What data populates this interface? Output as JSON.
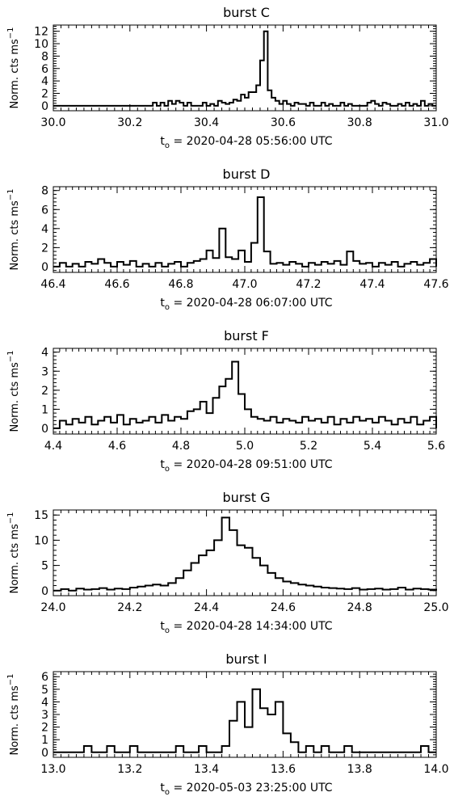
{
  "chart_data": [
    {
      "type": "line",
      "title": "burst C",
      "ylabel": "Norm. cts ms",
      "ylabel_exponent": "−1",
      "xlabel_prefix": "t",
      "xlabel_subscript": "o",
      "xlabel": " = 2020-04-28 05:56:00 UTC",
      "xlim": [
        30.0,
        31.0
      ],
      "ylim": [
        -0.8,
        13
      ],
      "xticks": [
        "30.0",
        "30.2",
        "30.4",
        "30.6",
        "30.8",
        "31.0"
      ],
      "yticks": [
        "0",
        "2",
        "4",
        "6",
        "8",
        "10",
        "12"
      ],
      "x": [
        30.0,
        30.26,
        30.27,
        30.28,
        30.29,
        30.3,
        30.31,
        30.32,
        30.33,
        30.34,
        30.35,
        30.36,
        30.37,
        30.38,
        30.39,
        30.4,
        30.41,
        30.42,
        30.43,
        30.44,
        30.45,
        30.46,
        30.47,
        30.48,
        30.49,
        30.5,
        30.51,
        30.52,
        30.53,
        30.54,
        30.55,
        30.56,
        30.57,
        30.58,
        30.59,
        30.6,
        30.61,
        30.62,
        30.63,
        30.64,
        30.65,
        30.66,
        30.67,
        30.68,
        30.69,
        30.7,
        30.71,
        30.72,
        30.73,
        30.74,
        30.75,
        30.76,
        30.77,
        30.78,
        30.79,
        30.8,
        30.81,
        30.82,
        30.83,
        30.84,
        30.85,
        30.86,
        30.87,
        30.88,
        30.89,
        30.9,
        30.91,
        30.92,
        30.93,
        30.94,
        30.95,
        30.96,
        30.97,
        30.98,
        30.99,
        31.0
      ],
      "y": [
        0,
        0.5,
        0,
        0.5,
        0,
        0.8,
        0.3,
        0.8,
        0.5,
        0,
        0.5,
        0,
        0,
        0,
        0.5,
        0,
        0.3,
        0,
        0.8,
        0.5,
        0.3,
        0.5,
        1.0,
        0.8,
        1.8,
        1.3,
        2.2,
        2.2,
        3.3,
        7.3,
        12.0,
        2.5,
        1.3,
        0.8,
        0.3,
        0.8,
        0.3,
        0,
        0.5,
        0.3,
        0.3,
        0,
        0.5,
        0,
        0,
        0.5,
        0,
        0.3,
        0,
        0,
        0.5,
        0,
        0.3,
        0,
        0,
        0,
        0,
        0.5,
        0.8,
        0.3,
        0,
        0.5,
        0.3,
        0,
        0,
        0.3,
        0,
        0.5,
        0,
        0.3,
        0,
        0.8,
        0,
        0.3,
        0,
        0
      ]
    },
    {
      "type": "line",
      "title": "burst D",
      "ylabel": "Norm. cts ms",
      "ylabel_exponent": "−1",
      "xlabel_prefix": "t",
      "xlabel_subscript": "o",
      "xlabel": " = 2020-04-28 06:07:00 UTC",
      "xlim": [
        46.4,
        47.6
      ],
      "ylim": [
        -0.6,
        8.4
      ],
      "xticks": [
        "46.4",
        "46.6",
        "46.8",
        "47.0",
        "47.2",
        "47.4",
        "47.6"
      ],
      "yticks": [
        "0",
        "2",
        "4",
        "6",
        "8"
      ],
      "x": [
        46.4,
        46.42,
        46.44,
        46.46,
        46.48,
        46.5,
        46.52,
        46.54,
        46.56,
        46.58,
        46.6,
        46.62,
        46.64,
        46.66,
        46.68,
        46.7,
        46.72,
        46.74,
        46.76,
        46.78,
        46.8,
        46.82,
        46.84,
        46.86,
        46.88,
        46.9,
        46.92,
        46.94,
        46.96,
        46.98,
        47.0,
        47.02,
        47.04,
        47.06,
        47.08,
        47.1,
        47.12,
        47.14,
        47.16,
        47.18,
        47.2,
        47.22,
        47.24,
        47.26,
        47.28,
        47.3,
        47.32,
        47.34,
        47.36,
        47.38,
        47.4,
        47.42,
        47.44,
        47.46,
        47.48,
        47.5,
        47.52,
        47.54,
        47.56,
        47.58,
        47.6
      ],
      "y": [
        0,
        0.4,
        0,
        0.3,
        0,
        0.5,
        0.3,
        0.8,
        0.4,
        0,
        0.5,
        0.2,
        0.6,
        0,
        0.3,
        0,
        0.4,
        0,
        0.3,
        0.5,
        0,
        0.4,
        0.6,
        0.8,
        1.7,
        0.9,
        4.0,
        1.0,
        0.8,
        1.7,
        0.5,
        2.5,
        7.3,
        1.6,
        0.3,
        0.4,
        0.2,
        0.5,
        0.3,
        0,
        0.4,
        0.2,
        0.5,
        0.3,
        0.6,
        0.2,
        1.6,
        0.6,
        0.3,
        0.4,
        0,
        0.4,
        0.2,
        0.5,
        0,
        0.3,
        0.5,
        0.2,
        0.4,
        0.8,
        0
      ]
    },
    {
      "type": "line",
      "title": "burst F",
      "ylabel": "Norm. cts ms",
      "ylabel_exponent": "−1",
      "xlabel_prefix": "t",
      "xlabel_subscript": "o",
      "xlabel": " = 2020-04-28 09:51:00 UTC",
      "xlim": [
        4.4,
        5.6
      ],
      "ylim": [
        -0.3,
        4.2
      ],
      "xticks": [
        "4.4",
        "4.6",
        "4.8",
        "5.0",
        "5.2",
        "5.4",
        "5.6"
      ],
      "yticks": [
        "0",
        "1",
        "2",
        "3",
        "4"
      ],
      "x": [
        4.4,
        4.42,
        4.44,
        4.46,
        4.48,
        4.5,
        4.52,
        4.54,
        4.56,
        4.58,
        4.6,
        4.62,
        4.64,
        4.66,
        4.68,
        4.7,
        4.72,
        4.74,
        4.76,
        4.78,
        4.8,
        4.82,
        4.84,
        4.86,
        4.88,
        4.9,
        4.92,
        4.94,
        4.96,
        4.98,
        5.0,
        5.02,
        5.04,
        5.06,
        5.08,
        5.1,
        5.12,
        5.14,
        5.16,
        5.18,
        5.2,
        5.22,
        5.24,
        5.26,
        5.28,
        5.3,
        5.32,
        5.34,
        5.36,
        5.38,
        5.4,
        5.42,
        5.44,
        5.46,
        5.48,
        5.5,
        5.52,
        5.54,
        5.56,
        5.58,
        5.6
      ],
      "y": [
        0,
        0.4,
        0.2,
        0.5,
        0.3,
        0.6,
        0.2,
        0.4,
        0.6,
        0.3,
        0.7,
        0.2,
        0.5,
        0.3,
        0.4,
        0.6,
        0.3,
        0.7,
        0.4,
        0.6,
        0.5,
        0.9,
        1.0,
        1.4,
        0.8,
        1.6,
        2.2,
        2.6,
        3.5,
        1.8,
        1.0,
        0.6,
        0.5,
        0.4,
        0.6,
        0.3,
        0.5,
        0.4,
        0.3,
        0.6,
        0.4,
        0.5,
        0.3,
        0.6,
        0.2,
        0.5,
        0.3,
        0.6,
        0.4,
        0.5,
        0.3,
        0.6,
        0.4,
        0.2,
        0.5,
        0.3,
        0.6,
        0.2,
        0.4,
        0.6,
        0
      ]
    },
    {
      "type": "line",
      "title": "burst G",
      "ylabel": "Norm. cts ms",
      "ylabel_exponent": "−1",
      "xlabel_prefix": "t",
      "xlabel_subscript": "o",
      "xlabel": " = 2020-04-28 14:34:00 UTC",
      "xlim": [
        24.0,
        25.0
      ],
      "ylim": [
        -1,
        16
      ],
      "xticks": [
        "24.0",
        "24.2",
        "24.4",
        "24.6",
        "24.8",
        "25.0"
      ],
      "yticks": [
        "0",
        "5",
        "10",
        "15"
      ],
      "x": [
        24.0,
        24.02,
        24.04,
        24.06,
        24.08,
        24.1,
        24.12,
        24.14,
        24.16,
        24.18,
        24.2,
        24.22,
        24.24,
        24.26,
        24.28,
        24.3,
        24.32,
        24.34,
        24.36,
        24.38,
        24.4,
        24.42,
        24.44,
        24.46,
        24.48,
        24.5,
        24.52,
        24.54,
        24.56,
        24.58,
        24.6,
        24.62,
        24.64,
        24.66,
        24.68,
        24.7,
        24.72,
        24.74,
        24.76,
        24.78,
        24.8,
        24.82,
        24.84,
        24.86,
        24.88,
        24.9,
        24.92,
        24.94,
        24.96,
        24.98,
        25.0
      ],
      "y": [
        0,
        0.3,
        0,
        0.4,
        0.2,
        0.3,
        0.5,
        0.2,
        0.4,
        0.3,
        0.6,
        0.8,
        1.0,
        1.2,
        1.0,
        1.5,
        2.5,
        4.0,
        5.5,
        7.0,
        8.0,
        10.0,
        14.5,
        12.0,
        9.0,
        8.5,
        6.5,
        5.0,
        3.5,
        2.5,
        1.8,
        1.5,
        1.2,
        1.0,
        0.8,
        0.6,
        0.5,
        0.4,
        0.3,
        0.5,
        0.2,
        0.3,
        0.4,
        0.2,
        0.3,
        0.6,
        0.2,
        0.4,
        0.3,
        0.2,
        0
      ]
    },
    {
      "type": "line",
      "title": "burst I",
      "ylabel": "Norm. cts ms",
      "ylabel_exponent": "−1",
      "xlabel_prefix": "t",
      "xlabel_subscript": "o",
      "xlabel": " = 2020-05-03 23:25:00 UTC",
      "xlim": [
        13.0,
        14.0
      ],
      "ylim": [
        -0.4,
        6.4
      ],
      "xticks": [
        "13.0",
        "13.2",
        "13.4",
        "13.6",
        "13.8",
        "14.0"
      ],
      "yticks": [
        "0",
        "1",
        "2",
        "3",
        "4",
        "5",
        "6"
      ],
      "x": [
        13.0,
        13.02,
        13.04,
        13.06,
        13.08,
        13.1,
        13.12,
        13.14,
        13.16,
        13.18,
        13.2,
        13.22,
        13.24,
        13.26,
        13.28,
        13.3,
        13.32,
        13.34,
        13.36,
        13.38,
        13.4,
        13.42,
        13.44,
        13.46,
        13.48,
        13.5,
        13.52,
        13.54,
        13.56,
        13.58,
        13.6,
        13.62,
        13.64,
        13.66,
        13.68,
        13.7,
        13.72,
        13.74,
        13.76,
        13.78,
        13.8,
        13.82,
        13.84,
        13.86,
        13.88,
        13.9,
        13.92,
        13.94,
        13.96,
        13.98,
        14.0
      ],
      "y": [
        0,
        0,
        0,
        0,
        0.5,
        0,
        0,
        0.5,
        0,
        0,
        0.5,
        0,
        0,
        0,
        0,
        0,
        0.5,
        0,
        0,
        0.5,
        0,
        0,
        0.5,
        2.5,
        4.0,
        2.0,
        5.0,
        3.5,
        3.0,
        4.0,
        1.5,
        0.8,
        0,
        0.5,
        0,
        0.5,
        0,
        0,
        0.5,
        0,
        0,
        0,
        0,
        0,
        0,
        0,
        0,
        0,
        0.5,
        0,
        0
      ]
    }
  ]
}
